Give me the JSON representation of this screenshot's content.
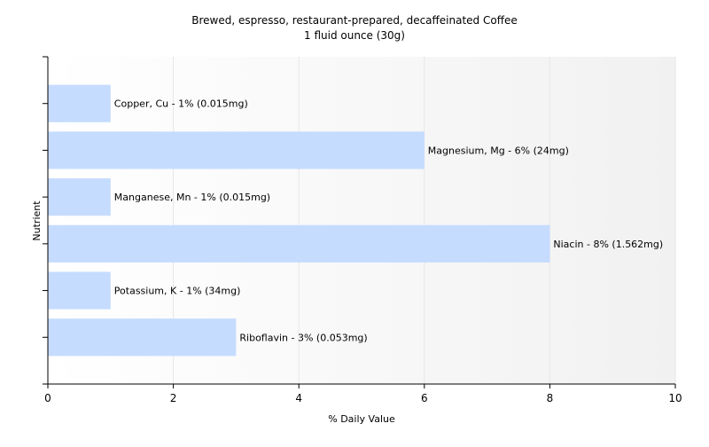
{
  "chart_data": {
    "type": "bar",
    "orientation": "horizontal",
    "title": "Brewed, espresso, restaurant-prepared, decaffeinated Coffee",
    "subtitle": "1 fluid ounce (30g)",
    "xlabel": "% Daily Value",
    "ylabel": "Nutrient",
    "xlim": [
      0,
      10
    ],
    "xticks": [
      0,
      2,
      4,
      6,
      8,
      10
    ],
    "grid": true,
    "categories": [
      "Copper, Cu",
      "Magnesium, Mg",
      "Manganese, Mn",
      "Niacin",
      "Potassium, K",
      "Riboflavin"
    ],
    "values": [
      1,
      6,
      1,
      8,
      1,
      3
    ],
    "data_labels": [
      "Copper, Cu - 1% (0.015mg)",
      "Magnesium, Mg - 6% (24mg)",
      "Manganese, Mn - 1% (0.015mg)",
      "Niacin - 8% (1.562mg)",
      "Potassium, K - 1% (34mg)",
      "Riboflavin - 3% (0.053mg)"
    ],
    "colors": {
      "bar": "#c6dcff",
      "axis": "#000000",
      "grid": "#e6e6e6",
      "text": "#000000"
    }
  }
}
